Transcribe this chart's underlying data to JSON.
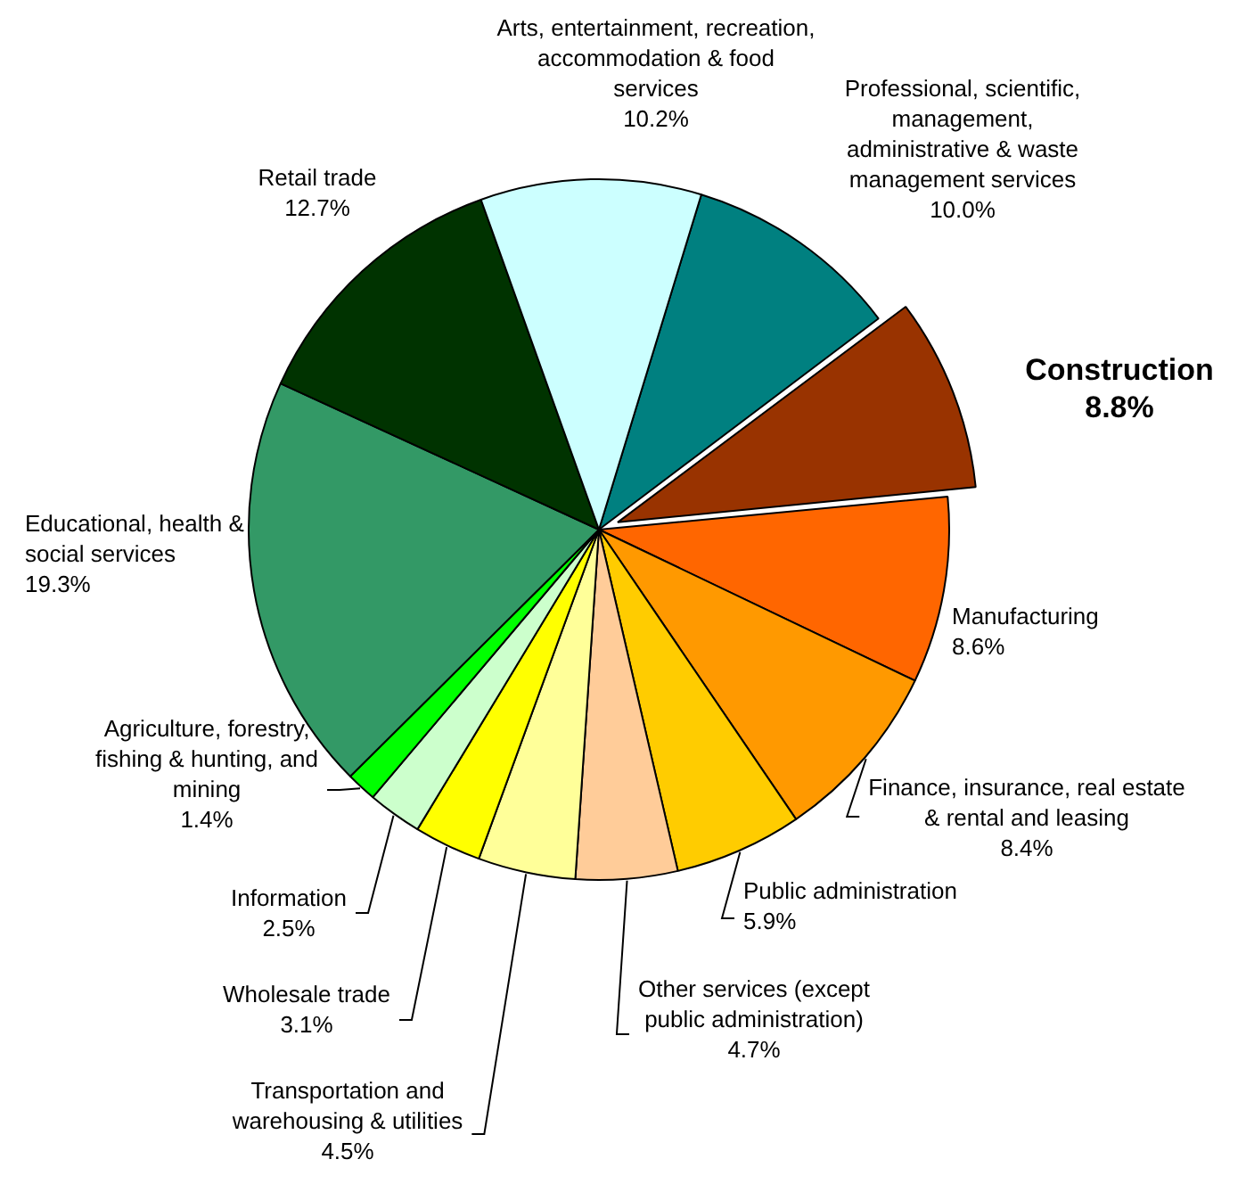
{
  "chart_data": {
    "type": "pie",
    "categories": [
      "Professional, scientific, management, administrative & waste management services",
      "Construction",
      "Manufacturing",
      "Finance, insurance, real estate & rental and leasing",
      "Public administration",
      "Other services (except public administration)",
      "Transportation and warehousing & utilities",
      "Wholesale trade",
      "Information",
      "Agriculture, forestry, fishing & hunting, and mining",
      "Educational, health & social services",
      "Retail trade",
      "Arts, entertainment, recreation, accommodation & food services"
    ],
    "values": [
      10.0,
      8.8,
      8.6,
      8.4,
      5.9,
      4.7,
      4.5,
      3.1,
      2.5,
      1.4,
      19.3,
      12.7,
      10.2
    ],
    "colors": [
      "#008080",
      "#993300",
      "#ff6600",
      "#ff9900",
      "#ffcc00",
      "#ffcc99",
      "#ffff99",
      "#ffff00",
      "#ccffcc",
      "#00ff00",
      "#339966",
      "#003300",
      "#ccffff"
    ],
    "value_labels": [
      "10.0%",
      "8.8%",
      "8.6%",
      "8.4%",
      "5.9%",
      "4.7%",
      "4.5%",
      "3.1%",
      "2.5%",
      "1.4%",
      "19.3%",
      "12.7%",
      "10.2%"
    ],
    "legend": false
  }
}
